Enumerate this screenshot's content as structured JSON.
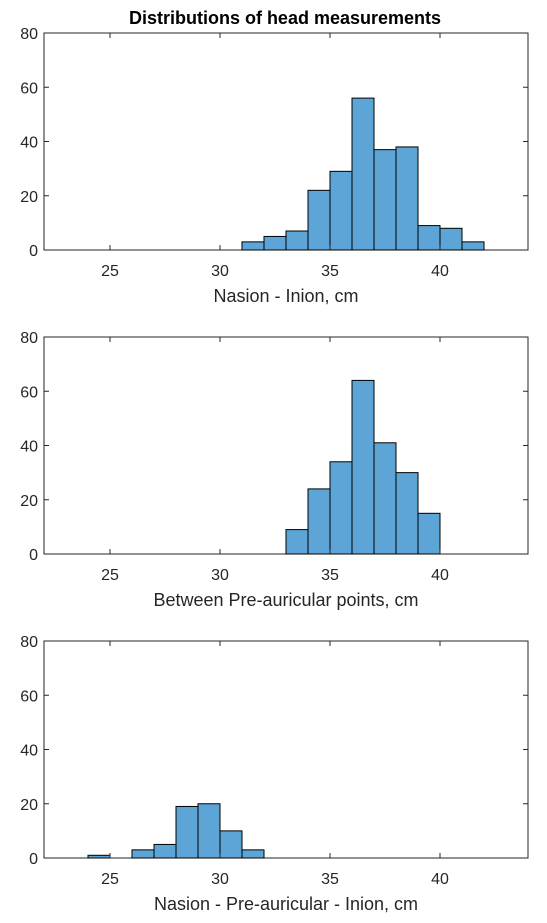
{
  "figure": {
    "title": "Distributions of head measurements"
  },
  "chart_data": [
    {
      "type": "bar",
      "subtype": "histogram",
      "title": "Distributions of head measurements",
      "xlabel": "Nasion - Inion, cm",
      "ylabel": "",
      "xlim": [
        22,
        44
      ],
      "ylim": [
        0,
        80
      ],
      "xticks": [
        25,
        30,
        35,
        40
      ],
      "yticks": [
        0,
        20,
        40,
        60,
        80
      ],
      "bin_width": 1,
      "bins": [
        {
          "start": 31,
          "end": 32,
          "count": 3
        },
        {
          "start": 32,
          "end": 33,
          "count": 5
        },
        {
          "start": 33,
          "end": 34,
          "count": 7
        },
        {
          "start": 34,
          "end": 35,
          "count": 22
        },
        {
          "start": 35,
          "end": 36,
          "count": 29
        },
        {
          "start": 36,
          "end": 37,
          "count": 56
        },
        {
          "start": 37,
          "end": 38,
          "count": 37
        },
        {
          "start": 38,
          "end": 39,
          "count": 38
        },
        {
          "start": 39,
          "end": 40,
          "count": 9
        },
        {
          "start": 40,
          "end": 41,
          "count": 8
        },
        {
          "start": 41,
          "end": 42,
          "count": 3
        }
      ],
      "color": "#5DA4D7",
      "edge_color": "#000000",
      "grid": false,
      "legend": "none"
    },
    {
      "type": "bar",
      "subtype": "histogram",
      "title": "",
      "xlabel": "Between Pre-auricular points, cm",
      "ylabel": "",
      "xlim": [
        22,
        44
      ],
      "ylim": [
        0,
        80
      ],
      "xticks": [
        25,
        30,
        35,
        40
      ],
      "yticks": [
        0,
        20,
        40,
        60,
        80
      ],
      "bin_width": 1,
      "bins": [
        {
          "start": 33,
          "end": 34,
          "count": 9
        },
        {
          "start": 34,
          "end": 35,
          "count": 24
        },
        {
          "start": 35,
          "end": 36,
          "count": 34
        },
        {
          "start": 36,
          "end": 37,
          "count": 64
        },
        {
          "start": 37,
          "end": 38,
          "count": 41
        },
        {
          "start": 38,
          "end": 39,
          "count": 30
        },
        {
          "start": 39,
          "end": 40,
          "count": 15
        }
      ],
      "color": "#5DA4D7",
      "edge_color": "#000000",
      "grid": false,
      "legend": "none"
    },
    {
      "type": "bar",
      "subtype": "histogram",
      "title": "",
      "xlabel": "Nasion - Pre-auricular - Inion, cm",
      "ylabel": "",
      "xlim": [
        22,
        44
      ],
      "ylim": [
        0,
        80
      ],
      "xticks": [
        25,
        30,
        35,
        40
      ],
      "yticks": [
        0,
        20,
        40,
        60,
        80
      ],
      "bin_width": 1,
      "bins": [
        {
          "start": 24,
          "end": 25,
          "count": 1
        },
        {
          "start": 25,
          "end": 26,
          "count": 0
        },
        {
          "start": 26,
          "end": 27,
          "count": 3
        },
        {
          "start": 27,
          "end": 28,
          "count": 5
        },
        {
          "start": 28,
          "end": 29,
          "count": 19
        },
        {
          "start": 29,
          "end": 30,
          "count": 20
        },
        {
          "start": 30,
          "end": 31,
          "count": 10
        },
        {
          "start": 31,
          "end": 32,
          "count": 3
        }
      ],
      "color": "#5DA4D7",
      "edge_color": "#000000",
      "grid": false,
      "legend": "none"
    }
  ]
}
